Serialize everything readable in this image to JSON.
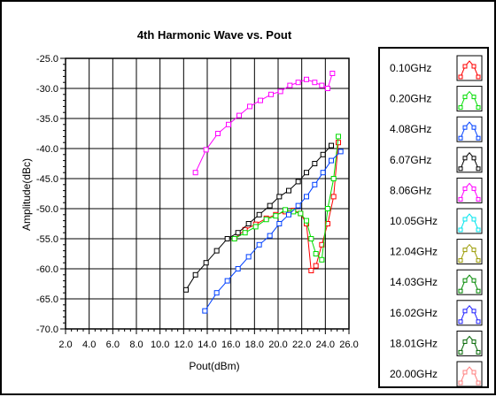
{
  "chart_data": {
    "type": "line",
    "title": "4th Harmonic Wave vs. Pout",
    "xlabel": "Pout(dBm)",
    "ylabel": "Amplitude(dBc)",
    "xlim": [
      2.0,
      26.0
    ],
    "ylim": [
      -70.0,
      -25.0
    ],
    "x_ticks": [
      "2.0",
      "4.0",
      "6.0",
      "8.0",
      "10.0",
      "12.0",
      "14.0",
      "16.0",
      "18.0",
      "20.0",
      "22.0",
      "24.0",
      "26.0"
    ],
    "y_ticks": [
      "-25.0",
      "-30.0",
      "-35.0",
      "-40.0",
      "-45.0",
      "-50.0",
      "-55.0",
      "-60.0",
      "-65.0",
      "-70.0"
    ],
    "grid": true,
    "legend_position": "right",
    "series": [
      {
        "name": "0.10GHz",
        "color": "#ff0000",
        "x": [
          16.3,
          17.2,
          18.1,
          19.0,
          19.8,
          20.6,
          21.3,
          21.9,
          22.4,
          22.8,
          23.2,
          23.7,
          24.2,
          24.7,
          25.1
        ],
        "y": [
          -55.0,
          -53.5,
          -52.6,
          -51.6,
          -51.0,
          -50.5,
          -50.3,
          -50.8,
          -52.5,
          -60.3,
          -59.5,
          -56.0,
          -52.5,
          -48.0,
          -39.0
        ]
      },
      {
        "name": "0.20GHz",
        "color": "#00dd00",
        "x": [
          16.3,
          17.2,
          18.1,
          19.0,
          19.8,
          20.6,
          21.3,
          21.9,
          22.4,
          22.8,
          23.2,
          23.7,
          24.2,
          24.7,
          25.1
        ],
        "y": [
          -55.0,
          -54.0,
          -53.0,
          -51.8,
          -51.2,
          -50.2,
          -50.5,
          -50.8,
          -52.0,
          -55.0,
          -57.5,
          -58.5,
          -50.0,
          -45.0,
          -38.0
        ]
      },
      {
        "name": "4.08GHz",
        "color": "#0040ff",
        "x": [
          13.8,
          14.8,
          15.7,
          16.6,
          17.5,
          18.4,
          19.3,
          20.1,
          20.9,
          21.7,
          22.4,
          23.1,
          23.8,
          24.5,
          25.3
        ],
        "y": [
          -67.0,
          -64.0,
          -62.0,
          -60.0,
          -58.0,
          -56.0,
          -54.5,
          -52.5,
          -51.0,
          -49.5,
          -48.0,
          -46.0,
          -44.0,
          -42.0,
          -40.5
        ]
      },
      {
        "name": "6.07GHz",
        "color": "#000000",
        "x": [
          12.2,
          13.0,
          13.9,
          14.8,
          15.7,
          16.6,
          17.5,
          18.4,
          19.3,
          20.1,
          20.9,
          21.7,
          22.4,
          23.1,
          23.8,
          24.5
        ],
        "y": [
          -63.5,
          -61.0,
          -59.0,
          -57.0,
          -55.0,
          -54.0,
          -52.5,
          -51.0,
          -49.5,
          -48.0,
          -47.0,
          -45.5,
          -44.0,
          -42.5,
          -41.0,
          -39.5
        ]
      },
      {
        "name": "8.06GHz",
        "color": "#ff00ff",
        "x": [
          13.0,
          13.9,
          14.9,
          15.8,
          16.7,
          17.6,
          18.5,
          19.4,
          20.2,
          21.0,
          21.7,
          22.4,
          23.1,
          23.7,
          24.2,
          24.6
        ],
        "y": [
          -44.0,
          -40.2,
          -37.5,
          -36.0,
          -34.5,
          -33.0,
          -32.0,
          -31.0,
          -30.5,
          -29.5,
          -29.0,
          -28.5,
          -29.0,
          -29.5,
          -30.0,
          -27.5
        ]
      }
    ]
  },
  "legend": {
    "entries": [
      {
        "name": "0.10GHz",
        "color": "#ff0000"
      },
      {
        "name": "0.20GHz",
        "color": "#00dd00"
      },
      {
        "name": "4.08GHz",
        "color": "#0040ff"
      },
      {
        "name": "6.07GHz",
        "color": "#000000"
      },
      {
        "name": "8.06GHz",
        "color": "#ff00ff"
      },
      {
        "name": "10.05GHz",
        "color": "#00e5ee"
      },
      {
        "name": "12.04GHz",
        "color": "#9a9a00"
      },
      {
        "name": "14.03GHz",
        "color": "#008800"
      },
      {
        "name": "16.02GHz",
        "color": "#2020ff"
      },
      {
        "name": "18.01GHz",
        "color": "#006400"
      },
      {
        "name": "20.00GHz",
        "color": "#ff8080"
      }
    ]
  }
}
